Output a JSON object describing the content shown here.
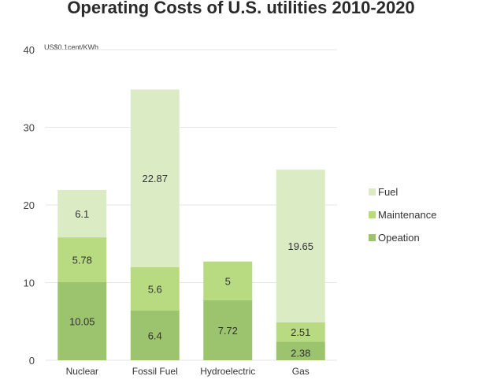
{
  "chart_data": {
    "type": "bar",
    "stacked": true,
    "title": "Operating Costs of U.S. utilities 2010-2020",
    "ylabel": "US$0.1cent/KWh",
    "xlabel": "",
    "ylim": [
      0,
      40
    ],
    "yticks": [
      "0",
      "10",
      "20",
      "30",
      "40"
    ],
    "grid": true,
    "legend_position": "right",
    "categories": [
      "Nuclear",
      "Fossil Fuel",
      "Hydroelectric",
      "Gas"
    ],
    "series": [
      {
        "name": "Opeation",
        "color": "#9cc46f",
        "values": [
          10.05,
          6.4,
          7.72,
          2.38
        ],
        "labels": [
          "10.05",
          "6.4",
          "7.72",
          "2.38"
        ]
      },
      {
        "name": "Maintenance",
        "color": "#b8da80",
        "values": [
          5.78,
          5.6,
          5,
          2.51
        ],
        "labels": [
          "5.78",
          "5.6",
          "5",
          "2.51"
        ]
      },
      {
        "name": "Fuel",
        "color": "#dbebc4",
        "values": [
          6.1,
          22.87,
          null,
          19.65
        ],
        "labels": [
          "6.1",
          "22.87",
          "",
          "19.65"
        ]
      }
    ],
    "legend_order": [
      "Fuel",
      "Maintenance",
      "Opeation"
    ]
  }
}
